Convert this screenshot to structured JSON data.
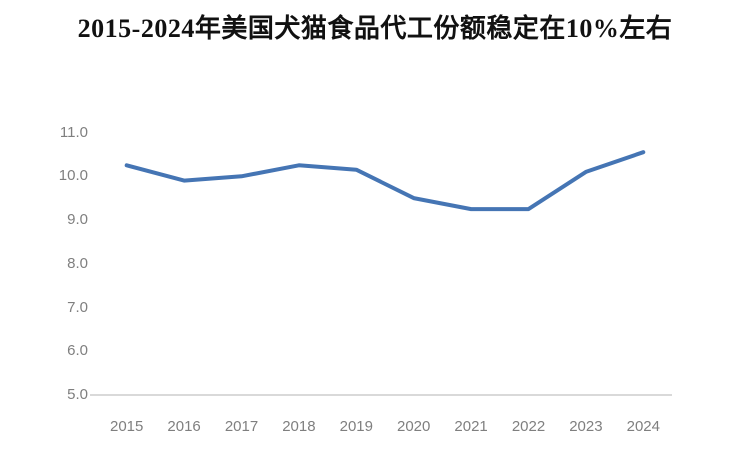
{
  "page": {
    "background_color": "#ffffff"
  },
  "chart_data": {
    "type": "line",
    "title": "2015-2024年美国犬猫食品代工份额稳定在10%左右",
    "categories": [
      "2015",
      "2016",
      "2017",
      "2018",
      "2019",
      "2020",
      "2021",
      "2022",
      "2023",
      "2024"
    ],
    "values": [
      10.25,
      9.9,
      10.0,
      10.25,
      10.15,
      9.5,
      9.25,
      9.25,
      10.1,
      10.55
    ],
    "xlabel": "",
    "ylabel": "",
    "ylim": [
      5.0,
      11.0
    ],
    "ytick_values": [
      11,
      10,
      9,
      8,
      7,
      6,
      5
    ],
    "ytick_labels": [
      "11.0",
      "10.0",
      "9.0",
      "8.0",
      "7.0",
      "6.0",
      "5.0"
    ],
    "grid": false,
    "legend": false,
    "line_color": "#4575b4",
    "line_width": 4,
    "axis_line_color": "#d9d9d9",
    "tick_label_color": "#7f7f7f"
  }
}
